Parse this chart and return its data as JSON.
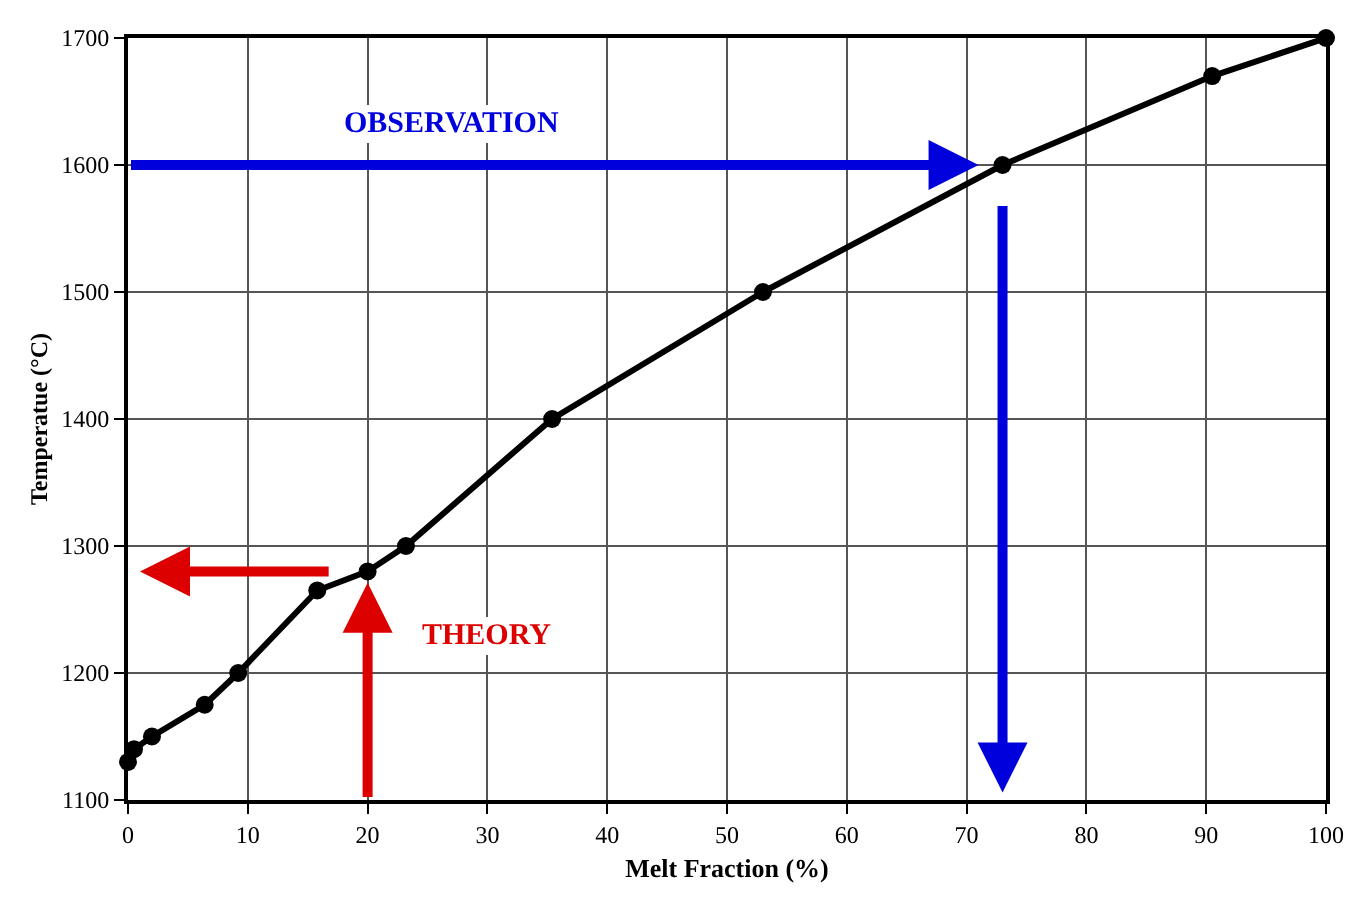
{
  "chart_data": {
    "type": "line",
    "xlabel": "Melt Fraction (%)",
    "ylabel": "Temperatue (°C)",
    "x": [
      0,
      0.5,
      2,
      6.4,
      9.2,
      15.8,
      20,
      23.2,
      35.4,
      53,
      73,
      90.5,
      100
    ],
    "series": [
      {
        "color": "#000000",
        "values": [
          1130,
          1140,
          1150,
          1175,
          1200,
          1265,
          1280,
          1300,
          1400,
          1500,
          1600,
          1670,
          1700
        ]
      }
    ],
    "xlim": [
      0,
      100
    ],
    "xticks": [
      0,
      10,
      20,
      30,
      40,
      50,
      60,
      70,
      80,
      90,
      100
    ],
    "ylim": [
      1100,
      1700
    ],
    "yticks": [
      1100,
      1200,
      1300,
      1400,
      1500,
      1600,
      1700
    ],
    "grid": true,
    "marker": "circle",
    "line_style": "solid",
    "annotations": [
      "OBSERVATION",
      "THEORY"
    ]
  }
}
